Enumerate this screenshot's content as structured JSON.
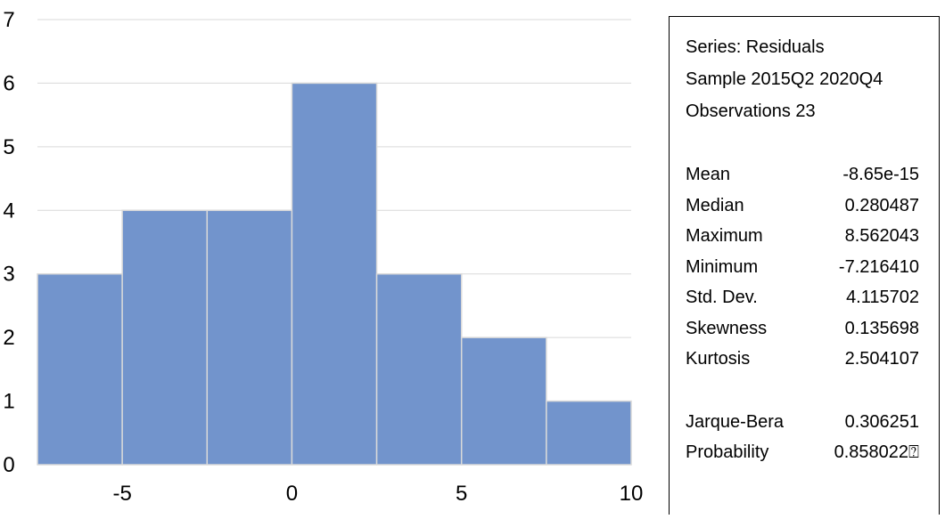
{
  "chart_data": {
    "type": "bar",
    "title": "",
    "xlabel": "",
    "ylabel": "",
    "bins": [
      {
        "from": -7.5,
        "to": -5.0,
        "count": 3
      },
      {
        "from": -5.0,
        "to": -2.5,
        "count": 4
      },
      {
        "from": -2.5,
        "to": 0.0,
        "count": 4
      },
      {
        "from": 0.0,
        "to": 2.5,
        "count": 6
      },
      {
        "from": 2.5,
        "to": 5.0,
        "count": 3
      },
      {
        "from": 5.0,
        "to": 7.5,
        "count": 2
      },
      {
        "from": 7.5,
        "to": 10.0,
        "count": 1
      }
    ],
    "xlim": [
      -7.5,
      10
    ],
    "ylim": [
      0,
      7
    ],
    "xticks": [
      -5,
      0,
      5,
      10
    ],
    "yticks": [
      0,
      1,
      2,
      3,
      4,
      5,
      6,
      7
    ],
    "grid": true,
    "bar_color": "#7294CC",
    "bar_edge_color": "#D9D9D9",
    "grid_color": "#D9D9D9"
  },
  "stats": {
    "header": [
      "Series: Residuals",
      "Sample 2015Q2 2020Q4",
      "Observations 23"
    ],
    "rows": [
      {
        "label": "Mean",
        "value": "-8.65e-15"
      },
      {
        "label": "Median",
        "value": "0.280487"
      },
      {
        "label": "Maximum",
        "value": "8.562043"
      },
      {
        "label": "Minimum",
        "value": "-7.216410"
      },
      {
        "label": "Std. Dev.",
        "value": "4.115702"
      },
      {
        "label": "Skewness",
        "value": "0.135698"
      },
      {
        "label": "Kurtosis",
        "value": "2.504107"
      }
    ],
    "tests": [
      {
        "label": "Jarque-Bera",
        "value": "0.306251"
      },
      {
        "label": "Probability",
        "value": "0.858022⍰"
      }
    ]
  }
}
